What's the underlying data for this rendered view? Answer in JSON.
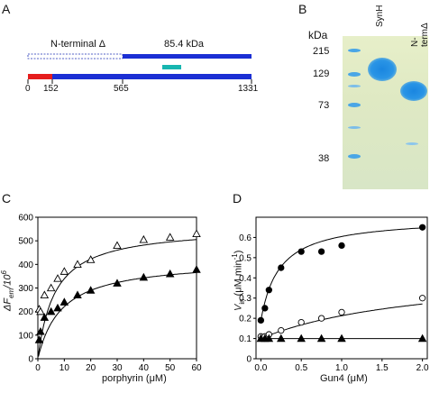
{
  "panels": {
    "A": {
      "letter": "A",
      "nterm_label": "N-terminal Δ",
      "kda_label": "85.4 kDa",
      "ticks": [
        "0",
        "152",
        "565",
        "1331"
      ]
    },
    "B": {
      "letter": "B",
      "kda_unit": "kDa",
      "markers": [
        "215",
        "129",
        "73",
        "38"
      ],
      "lanes": [
        "SynH",
        "N-termΔ"
      ],
      "colors": {
        "gel_bg": "#e2ecc6",
        "band": "#1f8fe0",
        "ladder": "#4aa6e6"
      }
    },
    "C": {
      "letter": "C",
      "xlabel": "porphyrin (μM)",
      "ylabel_main": "ΔF",
      "ylabel_sub": "em",
      "ylabel_tail": "/10",
      "ylabel_sup": "6",
      "xticks": [
        "0",
        "10",
        "20",
        "30",
        "40",
        "50",
        "60"
      ],
      "yticks": [
        "0",
        "100",
        "200",
        "300",
        "400",
        "500",
        "600"
      ]
    },
    "D": {
      "letter": "D",
      "xlabel": "Gun4 (μM)",
      "ylabel_main": "V",
      "ylabel_sub": "in",
      "ylabel_tail": " (μM min",
      "ylabel_sup": "-1",
      "ylabel_close": ")",
      "xticks": [
        "0.0",
        "0.5",
        "1.0",
        "1.5",
        "2.0"
      ],
      "yticks": [
        "0",
        "0.1",
        "0.2",
        "0.3",
        "0.4",
        "0.5",
        "0.6"
      ]
    }
  },
  "chart_data": [
    {
      "type": "scatter",
      "panel": "C",
      "xlabel": "porphyrin (μM)",
      "ylabel": "ΔFem/10^6",
      "xlim": [
        0,
        60
      ],
      "ylim": [
        0,
        600
      ],
      "series": [
        {
          "marker": "open-triangle",
          "x": [
            0.5,
            1,
            2.5,
            5,
            7.5,
            10,
            15,
            20,
            30,
            40,
            50,
            60
          ],
          "y": [
            210,
            200,
            270,
            300,
            340,
            370,
            400,
            420,
            480,
            505,
            515,
            530
          ]
        },
        {
          "marker": "filled-triangle",
          "x": [
            0.5,
            1,
            2.5,
            5,
            7.5,
            10,
            15,
            20,
            30,
            40,
            50,
            60
          ],
          "y": [
            80,
            115,
            175,
            200,
            215,
            240,
            270,
            290,
            320,
            345,
            360,
            378
          ]
        }
      ],
      "fits": [
        {
          "vmax": 560,
          "k": 6.5
        },
        {
          "vmax": 420,
          "k": 9
        }
      ]
    },
    {
      "type": "scatter",
      "panel": "D",
      "xlabel": "Gun4 (μM)",
      "ylabel": "Vin (μM min-1)",
      "xlim": [
        0,
        2
      ],
      "ylim": [
        0,
        0.7
      ],
      "series": [
        {
          "marker": "filled-circle",
          "x": [
            0,
            0.05,
            0.1,
            0.25,
            0.5,
            0.75,
            1.0,
            2.0
          ],
          "y": [
            0.19,
            0.25,
            0.34,
            0.45,
            0.53,
            0.53,
            0.56,
            0.65
          ]
        },
        {
          "marker": "open-circle",
          "x": [
            0,
            0.05,
            0.1,
            0.25,
            0.5,
            0.75,
            1.0,
            2.0
          ],
          "y": [
            0.11,
            0.11,
            0.12,
            0.14,
            0.18,
            0.2,
            0.23,
            0.3
          ]
        },
        {
          "marker": "filled-triangle",
          "x": [
            0,
            0.05,
            0.1,
            0.25,
            0.5,
            0.75,
            1.0,
            2.0
          ],
          "y": [
            0.1,
            0.1,
            0.1,
            0.1,
            0.1,
            0.1,
            0.1,
            0.1
          ]
        }
      ],
      "fits": [
        {
          "base": 0.19,
          "amp": 0.51,
          "k": 0.23
        },
        {
          "base": 0.1,
          "amp": 0.35,
          "k": 2.1
        },
        {
          "base": 0.1,
          "amp": 0,
          "k": 1
        }
      ]
    }
  ]
}
